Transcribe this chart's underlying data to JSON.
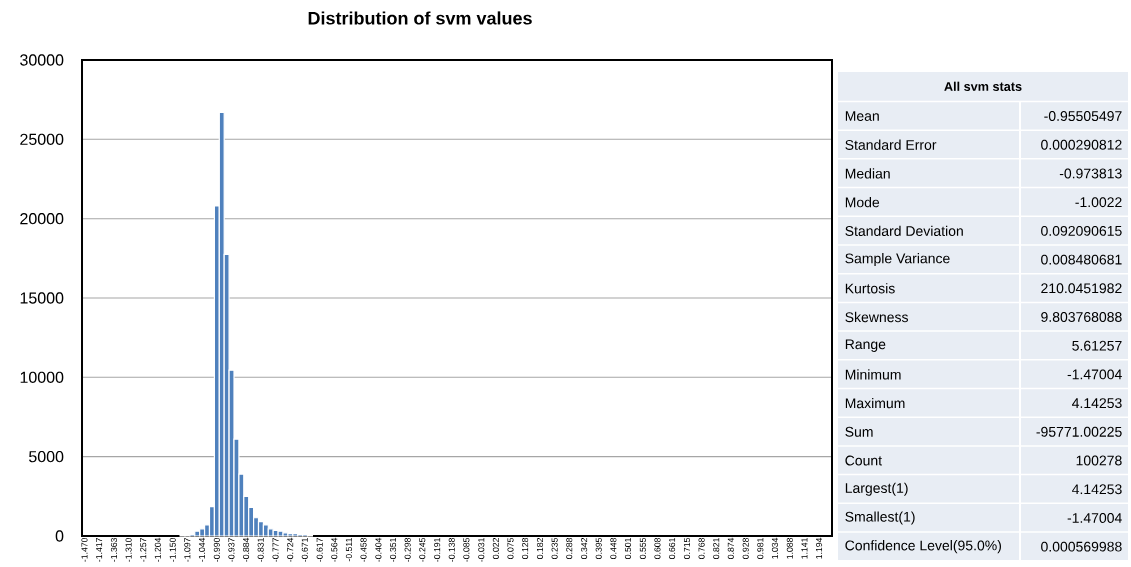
{
  "chart_data": [
    {
      "type": "histogram",
      "title": "Distribution of svm values",
      "color": "#4f81bd",
      "bins": [
        -1.1233,
        -1.1055,
        -1.0877,
        -1.07,
        -1.0522,
        -1.0344,
        -1.0166,
        -0.9988,
        -0.981,
        -0.9633,
        -0.9455,
        -0.9277,
        -0.9099,
        -0.8922,
        -0.8744,
        -0.8566,
        -0.8388,
        -0.821,
        -0.8033,
        -0.7855,
        -0.7677,
        -0.7499,
        -0.7322,
        -0.7144,
        -0.6966,
        -0.6788,
        -0.6611,
        -0.6433
      ],
      "values": [
        50,
        50,
        100,
        300,
        450,
        700,
        1850,
        20800,
        26700,
        17750,
        10450,
        6100,
        3900,
        2500,
        1800,
        1150,
        900,
        700,
        450,
        350,
        300,
        200,
        150,
        150,
        100,
        100,
        50
      ],
      "xlim": [
        -1.4789,
        1.241
      ],
      "xticks": [
        {
          "value": -1.47,
          "label": "-1.470"
        },
        {
          "value": -1.417,
          "label": "-1.417"
        },
        {
          "value": -1.363,
          "label": "-1.363"
        },
        {
          "value": -1.31,
          "label": "-1.310"
        },
        {
          "value": -1.257,
          "label": "-1.257"
        },
        {
          "value": -1.204,
          "label": "-1.204"
        },
        {
          "value": -1.15,
          "label": "-1.150"
        },
        {
          "value": -1.097,
          "label": "-1.097"
        },
        {
          "value": -1.044,
          "label": "-1.044"
        },
        {
          "value": -0.99,
          "label": "-0.990"
        },
        {
          "value": -0.937,
          "label": "-0.937"
        },
        {
          "value": -0.884,
          "label": "-0.884"
        },
        {
          "value": -0.831,
          "label": "-0.831"
        },
        {
          "value": -0.777,
          "label": "-0.777"
        },
        {
          "value": -0.724,
          "label": "-0.724"
        },
        {
          "value": -0.671,
          "label": "-0.671"
        },
        {
          "value": -0.617,
          "label": "-0.617"
        },
        {
          "value": -0.564,
          "label": "-0.564"
        },
        {
          "value": -0.511,
          "label": "-0.511"
        },
        {
          "value": -0.458,
          "label": "-0.458"
        },
        {
          "value": -0.404,
          "label": "-0.404"
        },
        {
          "value": -0.351,
          "label": "-0.351"
        },
        {
          "value": -0.298,
          "label": "-0.298"
        },
        {
          "value": -0.245,
          "label": "-0.245"
        },
        {
          "value": -0.191,
          "label": "-0.191"
        },
        {
          "value": -0.138,
          "label": "-0.138"
        },
        {
          "value": -0.085,
          "label": "-0.085"
        },
        {
          "value": -0.031,
          "label": "-0.031"
        },
        {
          "value": 0.022,
          "label": "0.022"
        },
        {
          "value": 0.075,
          "label": "0.075"
        },
        {
          "value": 0.128,
          "label": "0.128"
        },
        {
          "value": 0.182,
          "label": "0.182"
        },
        {
          "value": 0.235,
          "label": "0.235"
        },
        {
          "value": 0.288,
          "label": "0.288"
        },
        {
          "value": 0.342,
          "label": "0.342"
        },
        {
          "value": 0.395,
          "label": "0.395"
        },
        {
          "value": 0.448,
          "label": "0.448"
        },
        {
          "value": 0.501,
          "label": "0.501"
        },
        {
          "value": 0.555,
          "label": "0.555"
        },
        {
          "value": 0.608,
          "label": "0.608"
        },
        {
          "value": 0.661,
          "label": "0.661"
        },
        {
          "value": 0.715,
          "label": "0.715"
        },
        {
          "value": 0.768,
          "label": "0.768"
        },
        {
          "value": 0.821,
          "label": "0.821"
        },
        {
          "value": 0.874,
          "label": "0.874"
        },
        {
          "value": 0.928,
          "label": "0.928"
        },
        {
          "value": 0.981,
          "label": "0.981"
        },
        {
          "value": 1.034,
          "label": "1.034"
        },
        {
          "value": 1.088,
          "label": "1.088"
        },
        {
          "value": 1.141,
          "label": "1.141"
        },
        {
          "value": 1.194,
          "label": "1.194"
        }
      ],
      "ylim": [
        0,
        30000
      ],
      "yticks": [
        0,
        5000,
        10000,
        15000,
        20000,
        25000,
        30000
      ],
      "grid": "y"
    },
    {
      "type": "other",
      "title": "All svm stats",
      "categories": [
        "Mean",
        "Standard Error",
        "Median",
        "Mode",
        "Standard Deviation",
        "Sample Variance",
        "Kurtosis",
        "Skewness",
        "Range",
        "Minimum",
        "Maximum",
        "Sum",
        "Count",
        "Largest(1)",
        "Smallest(1)",
        "Confidence Level(95.0%)"
      ],
      "values": [
        -0.95505497,
        0.000290812,
        -0.973813,
        -1.0022,
        0.092090615,
        0.008480681,
        210.0451982,
        9.803768088,
        5.61257,
        -1.47004,
        4.14253,
        -95771.00225,
        100278,
        4.14253,
        -1.47004,
        0.000569988
      ],
      "data_labels": true
    }
  ]
}
